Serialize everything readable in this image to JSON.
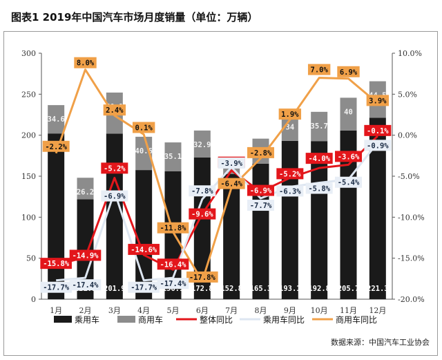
{
  "title": "图表1  2019年中国汽车市场月度销量（单位：万辆）",
  "source": "数据来源：中国汽车工业协会",
  "colors": {
    "passenger_bar": "#1a1a1a",
    "commercial_bar": "#8c8c8c",
    "total_yoy": "#e3161b",
    "passenger_yoy": "#dde6f1",
    "commercial_yoy": "#f0a048"
  },
  "chart_data": {
    "type": "bar",
    "categories": [
      "1月",
      "2月",
      "3月",
      "4月",
      "5月",
      "6月",
      "7月",
      "8月",
      "9月",
      "10月",
      "11月",
      "12月"
    ],
    "ylim": [
      0,
      300
    ],
    "yticks": [
      "0",
      "50",
      "100",
      "150",
      "200",
      "250",
      "300"
    ],
    "y2lim": [
      -20,
      10
    ],
    "y2ticks": [
      "-20.0%",
      "-15.0%",
      "-10.0%",
      "-5.0%",
      "0.0%",
      "5.0%",
      "10.0%"
    ],
    "bar_series": [
      {
        "name": "乘用车",
        "values": [
          202.1,
          121.9,
          201.9,
          157.5,
          156.1,
          172.8,
          152.8,
          165.3,
          193.1,
          192.8,
          205.7,
          221.3
        ],
        "labels": [
          "202.1",
          "121.9",
          "201.9",
          "157.5",
          "156.1",
          "172.8",
          "152.8",
          "165.3",
          "193.1",
          "192.8",
          "205.7",
          "221.3"
        ]
      },
      {
        "name": "商用车",
        "values": [
          34.6,
          26.2,
          50.1,
          40.6,
          35.1,
          32.9,
          11.0,
          30.5,
          34.0,
          35.7,
          40.0,
          44.5
        ],
        "labels": [
          "34.6",
          "26.2",
          "50.1",
          "40.6",
          "35.1",
          "32.9",
          "",
          "30.5",
          "34",
          "35.7",
          "40",
          "44.5"
        ]
      }
    ],
    "line_series": [
      {
        "name": "整体同比",
        "values": [
          -15.8,
          -14.9,
          -5.2,
          -14.6,
          -16.4,
          -9.6,
          -4.3,
          -6.9,
          -5.2,
          -4.0,
          -3.6,
          -0.1
        ],
        "labels": [
          "-15.8%",
          "-14.9%",
          "-5.2%",
          "-14.6%",
          "-16.4%",
          "-9.6%",
          "-4.3%",
          "-6.9%",
          "-5.2%",
          "-4.0%",
          "-3.6%",
          "-0.1%"
        ]
      },
      {
        "name": "乘用车同比",
        "values": [
          -17.7,
          -17.4,
          -6.9,
          -17.7,
          -17.4,
          -7.8,
          -3.9,
          -7.7,
          -6.3,
          -5.8,
          -5.4,
          -0.9
        ],
        "labels": [
          "-17.7%",
          "-17.4%",
          "-6.9%",
          "-17.7%",
          "-17.4%",
          "-7.8%",
          "-3.9%",
          "-7.7%",
          "-6.3%",
          "-5.8%",
          "-5.4%",
          "-0.9%"
        ]
      },
      {
        "name": "商用车同比",
        "values": [
          -2.2,
          8.0,
          2.4,
          0.1,
          -11.8,
          -17.8,
          -6.4,
          -2.8,
          1.9,
          7.0,
          6.9,
          3.9
        ],
        "labels": [
          "-2.2%",
          "8.0%",
          "2.4%",
          "0.1%",
          "-11.8%",
          "-17.8%",
          "-6.4%",
          "-2.8%",
          "1.9%",
          "7.0%",
          "6.9%",
          "3.9%"
        ]
      }
    ],
    "legend": [
      "乘用车",
      "商用车",
      "整体同比",
      "乘用车同比",
      "商用车同比"
    ],
    "legend_position": "bottom"
  }
}
